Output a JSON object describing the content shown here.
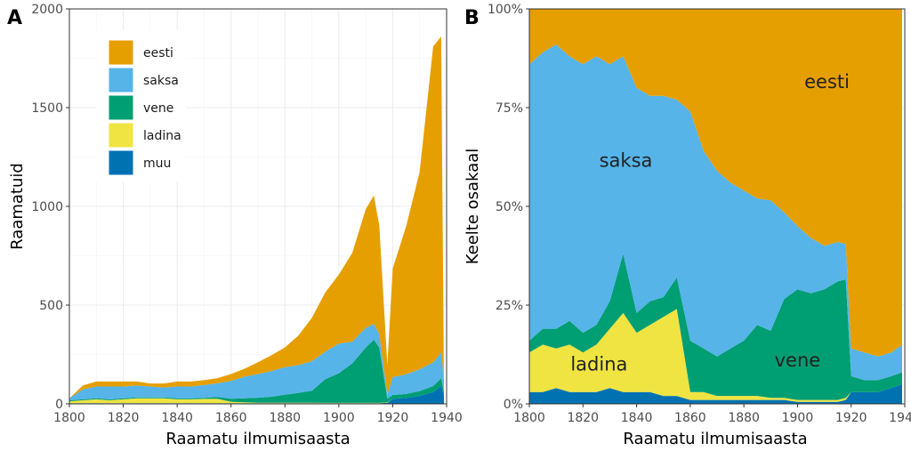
{
  "chart_data": [
    {
      "panel": "A",
      "type": "area",
      "stacked": true,
      "xlabel": "Raamatu ilmumisaasta",
      "ylabel": "Raamatuid",
      "xlim": [
        1800,
        1940
      ],
      "ylim": [
        0,
        2000
      ],
      "xticks": [
        1800,
        1820,
        1840,
        1860,
        1880,
        1900,
        1920,
        1940
      ],
      "yticks": [
        0,
        500,
        1000,
        1500,
        2000
      ],
      "ytick_labels": [
        "0",
        "500",
        "1000",
        "1500",
        "2000"
      ],
      "grid": true,
      "legend": "top-left",
      "x": [
        1800,
        1805,
        1810,
        1815,
        1820,
        1825,
        1830,
        1835,
        1840,
        1845,
        1850,
        1855,
        1860,
        1865,
        1870,
        1875,
        1880,
        1885,
        1890,
        1895,
        1900,
        1905,
        1910,
        1913,
        1915,
        1918,
        1920,
        1925,
        1930,
        1935,
        1938,
        1939
      ],
      "series": [
        {
          "name": "muu",
          "color": "#0072B2",
          "values": [
            3,
            3,
            3,
            3,
            3,
            3,
            3,
            3,
            3,
            3,
            3,
            3,
            3,
            3,
            3,
            3,
            3,
            3,
            3,
            3,
            3,
            3,
            3,
            3,
            3,
            5,
            25,
            30,
            40,
            60,
            90,
            40
          ]
        },
        {
          "name": "ladina",
          "color": "#F0E442",
          "values": [
            10,
            15,
            20,
            15,
            20,
            25,
            25,
            25,
            20,
            20,
            22,
            22,
            8,
            5,
            3,
            3,
            3,
            3,
            3,
            2,
            2,
            2,
            2,
            2,
            2,
            2,
            0,
            0,
            0,
            0,
            0,
            0
          ]
        },
        {
          "name": "vene",
          "color": "#009E73",
          "values": [
            5,
            5,
            5,
            5,
            5,
            5,
            5,
            5,
            5,
            5,
            5,
            10,
            15,
            20,
            25,
            30,
            40,
            50,
            60,
            120,
            150,
            200,
            280,
            320,
            280,
            20,
            20,
            20,
            25,
            30,
            40,
            20
          ]
        },
        {
          "name": "saksa",
          "color": "#56B4E9",
          "values": [
            10,
            50,
            60,
            65,
            60,
            60,
            55,
            50,
            60,
            60,
            65,
            70,
            90,
            110,
            120,
            130,
            140,
            140,
            150,
            140,
            150,
            110,
            100,
            80,
            70,
            20,
            90,
            100,
            110,
            120,
            130,
            60
          ]
        },
        {
          "name": "eesti",
          "color": "#E69F00",
          "values": [
            0,
            20,
            25,
            25,
            25,
            20,
            15,
            20,
            25,
            25,
            25,
            25,
            35,
            40,
            60,
            80,
            100,
            150,
            220,
            300,
            350,
            450,
            600,
            650,
            550,
            150,
            550,
            750,
            1000,
            1600,
            1600,
            0
          ]
        }
      ]
    },
    {
      "panel": "B",
      "type": "area",
      "stacked": true,
      "normalized": true,
      "xlabel": "Raamatu ilmumisaasta",
      "ylabel": "Keelte osakaal",
      "xlim": [
        1800,
        1940
      ],
      "ylim": [
        0,
        1
      ],
      "xticks": [
        1800,
        1820,
        1840,
        1860,
        1880,
        1900,
        1920,
        1940
      ],
      "yticks": [
        0,
        0.25,
        0.5,
        0.75,
        1
      ],
      "ytick_labels": [
        "0%",
        "25%",
        "50%",
        "75%",
        "100%"
      ],
      "grid": true,
      "x": [
        1800,
        1805,
        1810,
        1815,
        1820,
        1825,
        1830,
        1835,
        1840,
        1845,
        1850,
        1855,
        1860,
        1865,
        1870,
        1875,
        1880,
        1885,
        1890,
        1895,
        1900,
        1905,
        1910,
        1915,
        1918,
        1920,
        1925,
        1930,
        1935,
        1939
      ],
      "series": [
        {
          "name": "muu",
          "color": "#0072B2",
          "values": [
            0.03,
            0.03,
            0.04,
            0.03,
            0.03,
            0.03,
            0.04,
            0.03,
            0.03,
            0.03,
            0.02,
            0.02,
            0.01,
            0.01,
            0.01,
            0.01,
            0.01,
            0.01,
            0.01,
            0.01,
            0.005,
            0.005,
            0.005,
            0.005,
            0.01,
            0.03,
            0.03,
            0.03,
            0.04,
            0.05
          ]
        },
        {
          "name": "ladina",
          "color": "#F0E442",
          "values": [
            0.1,
            0.12,
            0.1,
            0.12,
            0.1,
            0.12,
            0.15,
            0.2,
            0.15,
            0.17,
            0.2,
            0.22,
            0.02,
            0.02,
            0.01,
            0.01,
            0.01,
            0.01,
            0.005,
            0.005,
            0.005,
            0.005,
            0.005,
            0.005,
            0.005,
            0,
            0,
            0,
            0,
            0
          ]
        },
        {
          "name": "vene",
          "color": "#009E73",
          "values": [
            0.03,
            0.04,
            0.05,
            0.06,
            0.05,
            0.05,
            0.07,
            0.15,
            0.05,
            0.06,
            0.05,
            0.08,
            0.13,
            0.11,
            0.1,
            0.12,
            0.14,
            0.18,
            0.17,
            0.25,
            0.28,
            0.27,
            0.28,
            0.3,
            0.3,
            0.04,
            0.03,
            0.03,
            0.03,
            0.03
          ]
        },
        {
          "name": "saksa",
          "color": "#56B4E9",
          "values": [
            0.7,
            0.7,
            0.72,
            0.67,
            0.68,
            0.68,
            0.6,
            0.5,
            0.57,
            0.52,
            0.51,
            0.45,
            0.58,
            0.5,
            0.47,
            0.42,
            0.38,
            0.32,
            0.33,
            0.22,
            0.16,
            0.14,
            0.11,
            0.1,
            0.09,
            0.07,
            0.07,
            0.06,
            0.06,
            0.07
          ]
        },
        {
          "name": "eesti",
          "color": "#E69F00",
          "values": [
            0.14,
            0.11,
            0.09,
            0.12,
            0.14,
            0.12,
            0.14,
            0.12,
            0.2,
            0.22,
            0.22,
            0.23,
            0.26,
            0.36,
            0.41,
            0.44,
            0.46,
            0.48,
            0.485,
            0.515,
            0.55,
            0.58,
            0.6,
            0.59,
            0.595,
            0.86,
            0.87,
            0.88,
            0.87,
            0.85
          ]
        }
      ],
      "annotations": [
        {
          "text": "eesti",
          "x": 1911,
          "y": 0.8
        },
        {
          "text": "saksa",
          "x": 1836,
          "y": 0.6
        },
        {
          "text": "ladina",
          "x": 1826,
          "y": 0.085
        },
        {
          "text": "vene",
          "x": 1900,
          "y": 0.095
        }
      ]
    }
  ]
}
